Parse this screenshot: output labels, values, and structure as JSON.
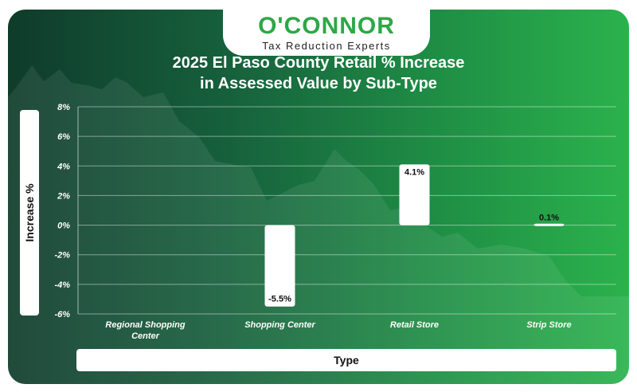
{
  "brand": {
    "name": "O'CONNOR",
    "tagline": "Tax Reduction Experts",
    "color": "#2ca846"
  },
  "chart_data": {
    "type": "bar",
    "title_lines": [
      "2025 El Paso County Retail % Increase",
      "in Assessed Value by Sub-Type"
    ],
    "title": "2025 El Paso County Retail % Increase in Assessed Value by Sub-Type",
    "xlabel": "Type",
    "ylabel": "Increase %",
    "categories": [
      "Regional Shopping Center",
      "Shopping Center",
      "Retail Store",
      "Strip Store"
    ],
    "category_lines": [
      [
        "Regional Shopping",
        "Center"
      ],
      [
        "Shopping Center"
      ],
      [
        "Retail Store"
      ],
      [
        "Strip Store"
      ]
    ],
    "values": [
      0,
      -5.5,
      4.1,
      0.1
    ],
    "data_labels": [
      "",
      "-5.5%",
      "4.1%",
      "0.1%"
    ],
    "yticks": [
      8,
      6,
      4,
      2,
      0,
      -2,
      -4,
      -6
    ],
    "ytick_labels": [
      "8%",
      "6%",
      "4%",
      "2%",
      "0%",
      "-2%",
      "-4%",
      "-6%"
    ],
    "ylim": [
      -6,
      8
    ],
    "grid": true,
    "legend": "none",
    "bar_color": "#ffffff",
    "background_colors": [
      "#0f3b2b",
      "#2bb24c"
    ]
  }
}
